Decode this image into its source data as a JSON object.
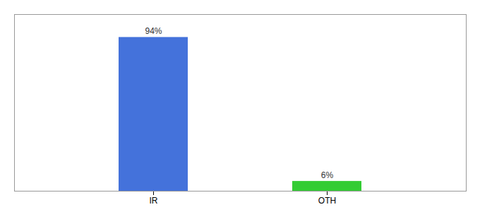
{
  "chart_data": {
    "type": "bar",
    "categories": [
      "IR",
      "OTH"
    ],
    "values": [
      94,
      6
    ],
    "value_labels": [
      "94%",
      "6%"
    ],
    "colors": [
      "#4472DB",
      "#33CC33"
    ],
    "ylim": [
      0,
      108
    ],
    "data_labels": true,
    "tick_labels": "x",
    "grid": false
  }
}
